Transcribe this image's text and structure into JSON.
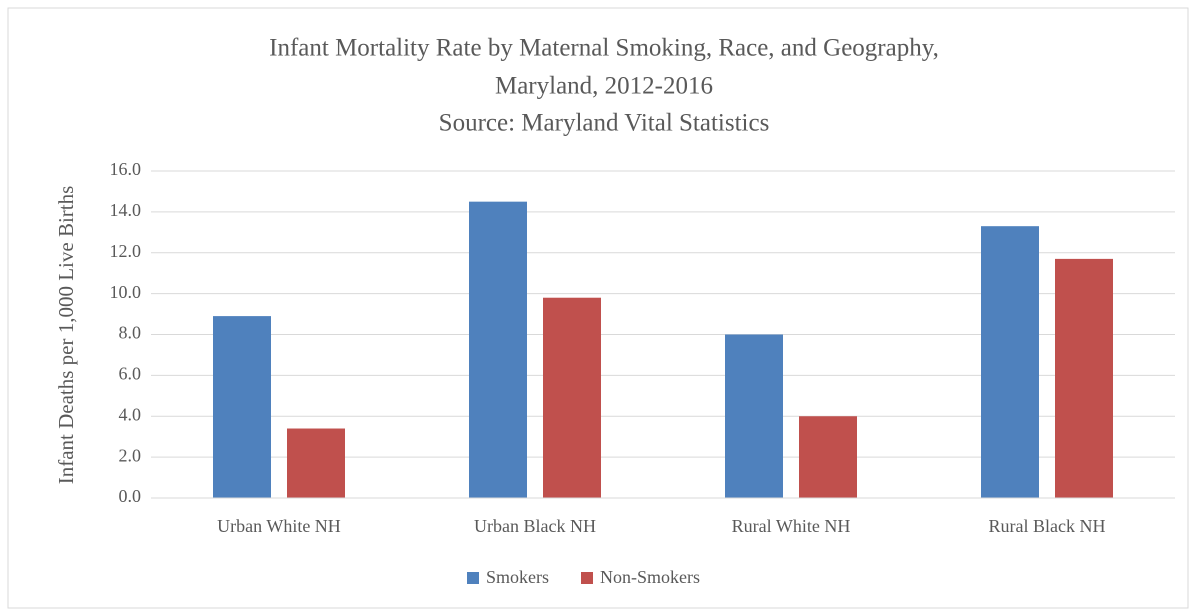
{
  "chart_data": {
    "type": "bar",
    "title": [
      "Infant Mortality Rate by Maternal Smoking, Race, and Geography,",
      "Maryland, 2012-2016"
    ],
    "subtitle": "Source: Maryland Vital Statistics",
    "y_label": "Infant Deaths per 1,000 Live Births",
    "categories": [
      "Urban White NH",
      "Urban Black NH",
      "Rural White NH",
      "Rural Black NH"
    ],
    "series": [
      {
        "name": "Smokers",
        "color": "#4f81bd",
        "values": [
          8.9,
          14.5,
          8.0,
          13.3
        ]
      },
      {
        "name": "Non-Smokers",
        "color": "#c0504d",
        "values": [
          3.4,
          9.8,
          4.0,
          11.7
        ]
      }
    ],
    "ylim": [
      0,
      16
    ],
    "yticks": [
      {
        "value": 0,
        "label": "0.0"
      },
      {
        "value": 2,
        "label": "2.0"
      },
      {
        "value": 4,
        "label": "4.0"
      },
      {
        "value": 6,
        "label": "6.0"
      },
      {
        "value": 8,
        "label": "8.0"
      },
      {
        "value": 10,
        "label": "10.0"
      },
      {
        "value": 12,
        "label": "12.0"
      },
      {
        "value": 14,
        "label": "14.0"
      },
      {
        "value": 16,
        "label": "16.0"
      }
    ],
    "grid": true,
    "legend": "bottom"
  }
}
